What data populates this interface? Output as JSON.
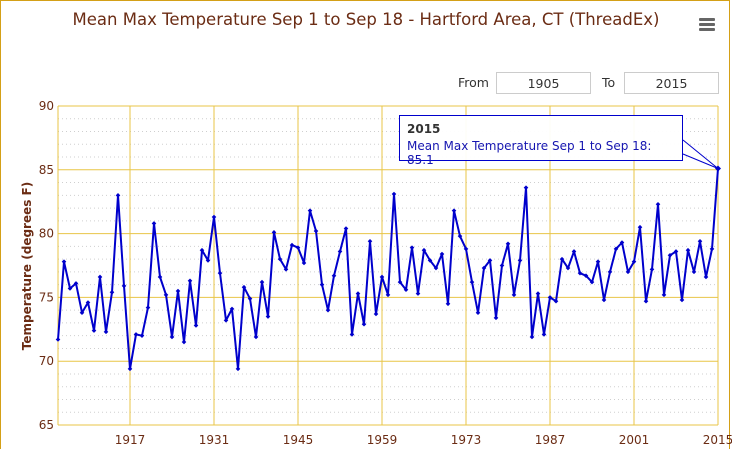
{
  "title": "Mean Max Temperature Sep 1 to Sep 18 - Hartford Area, CT (ThreadEx)",
  "range": {
    "from_label": "From",
    "from_value": "1905",
    "to_label": "To",
    "to_value": "2015"
  },
  "tooltip": {
    "year": "2015",
    "series_label": "Mean Max Temperature Sep 1 to Sep 18",
    "value": "85.1"
  },
  "colors": {
    "title": "#6b2c14",
    "series": "#0000cc",
    "grid": "#e8c547",
    "axis_text": "#6b2c14"
  },
  "chart_data": {
    "type": "line",
    "title": "Mean Max Temperature Sep 1 to Sep 18 - Hartford Area, CT (ThreadEx)",
    "xlabel": "",
    "ylabel": "Temperature (degrees F)",
    "xlim": [
      1905,
      2015
    ],
    "ylim": [
      65,
      90
    ],
    "x_ticks": [
      1917,
      1931,
      1945,
      1959,
      1973,
      1987,
      2001,
      2015
    ],
    "y_ticks": [
      65,
      70,
      75,
      80,
      85,
      90
    ],
    "grid": true,
    "series": [
      {
        "name": "Mean Max Temperature Sep 1 to Sep 18",
        "x": [
          1905,
          1906,
          1907,
          1908,
          1909,
          1910,
          1911,
          1912,
          1913,
          1914,
          1915,
          1916,
          1917,
          1918,
          1919,
          1920,
          1921,
          1922,
          1923,
          1924,
          1925,
          1926,
          1927,
          1928,
          1929,
          1930,
          1931,
          1932,
          1933,
          1934,
          1935,
          1936,
          1937,
          1938,
          1939,
          1940,
          1941,
          1942,
          1943,
          1944,
          1945,
          1946,
          1947,
          1948,
          1949,
          1950,
          1951,
          1952,
          1953,
          1954,
          1955,
          1956,
          1957,
          1958,
          1959,
          1960,
          1961,
          1962,
          1963,
          1964,
          1965,
          1966,
          1967,
          1968,
          1969,
          1970,
          1971,
          1972,
          1973,
          1974,
          1975,
          1976,
          1977,
          1978,
          1979,
          1980,
          1981,
          1982,
          1983,
          1984,
          1985,
          1986,
          1987,
          1988,
          1989,
          1990,
          1991,
          1992,
          1993,
          1994,
          1995,
          1996,
          1997,
          1998,
          1999,
          2000,
          2001,
          2002,
          2003,
          2004,
          2005,
          2006,
          2007,
          2008,
          2009,
          2010,
          2011,
          2012,
          2013,
          2014,
          2015
        ],
        "values": [
          71.7,
          77.8,
          75.7,
          76.1,
          73.8,
          74.6,
          72.4,
          76.6,
          72.3,
          75.4,
          83.0,
          75.9,
          69.4,
          72.1,
          72.0,
          74.2,
          80.8,
          76.6,
          75.2,
          71.9,
          75.5,
          71.5,
          76.3,
          72.8,
          78.7,
          77.9,
          81.3,
          76.9,
          73.2,
          74.1,
          69.4,
          75.8,
          74.9,
          71.9,
          76.2,
          73.5,
          80.1,
          78.0,
          77.2,
          79.1,
          78.9,
          77.7,
          81.8,
          80.2,
          76.0,
          74.0,
          76.7,
          78.6,
          80.4,
          72.1,
          75.3,
          72.9,
          79.4,
          73.7,
          76.6,
          75.2,
          83.1,
          76.2,
          75.6,
          78.9,
          75.3,
          78.7,
          77.9,
          77.3,
          78.4,
          74.5,
          81.8,
          79.8,
          78.8,
          76.2,
          73.8,
          77.3,
          77.9,
          73.4,
          77.5,
          79.2,
          75.2,
          77.9,
          83.6,
          71.9,
          75.3,
          72.1,
          75.0,
          74.7,
          78.0,
          77.3,
          78.6,
          76.9,
          76.7,
          76.2,
          77.8,
          74.8,
          77.0,
          78.8,
          79.3,
          77.0,
          77.8,
          80.5,
          74.7,
          77.2,
          82.3,
          75.2,
          78.3,
          78.6,
          74.8,
          78.7,
          77.0,
          79.4,
          76.6,
          78.8,
          85.1
        ]
      }
    ]
  }
}
